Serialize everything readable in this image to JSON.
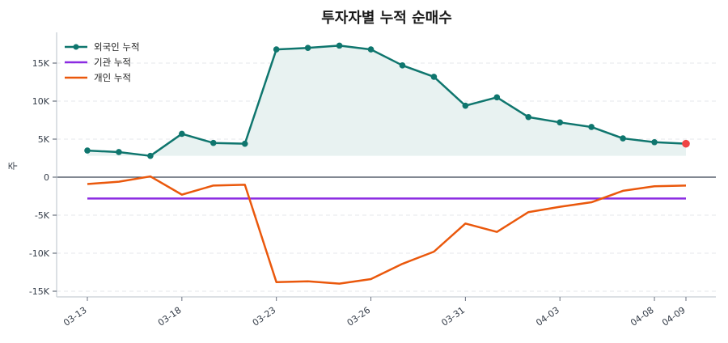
{
  "chart_data": {
    "type": "line",
    "title": "투자자별 누적 순매수",
    "xlabel": "",
    "ylabel": "주",
    "ylim": [
      -15500,
      19000
    ],
    "yticks": [
      -15000,
      -10000,
      -5000,
      0,
      5000,
      10000,
      15000
    ],
    "ytick_labels": [
      "-15K",
      "-10K",
      "-5K",
      "0",
      "5K",
      "10K",
      "15K"
    ],
    "xtick_labels": [
      "03-13",
      "03-18",
      "03-23",
      "03-26",
      "03-31",
      "04-03",
      "04-08",
      "04-09"
    ],
    "xtick_indices": [
      0,
      3,
      6,
      9,
      12,
      15,
      18,
      19
    ],
    "grid": true,
    "legend_position": "upper left",
    "x": [
      "03-13",
      "03-14",
      "03-17",
      "03-18",
      "03-19",
      "03-20",
      "03-23",
      "03-24",
      "03-25",
      "03-26",
      "03-27",
      "03-30",
      "03-31",
      "04-01",
      "04-02",
      "04-03",
      "04-06",
      "04-07",
      "04-08",
      "04-09"
    ],
    "series": [
      {
        "name": "외국인 누적",
        "color": "#0f766e",
        "marker": true,
        "fill": true,
        "values": [
          3500,
          3300,
          2800,
          5700,
          4500,
          4400,
          16800,
          17000,
          17300,
          16800,
          14700,
          13200,
          9400,
          10500,
          7900,
          7200,
          6600,
          5100,
          4600,
          4400
        ]
      },
      {
        "name": "기관 누적",
        "color": "#8b2be2",
        "marker": false,
        "fill": false,
        "values": [
          -2800,
          -2800,
          -2800,
          -2800,
          -2800,
          -2800,
          -2800,
          -2800,
          -2800,
          -2800,
          -2800,
          -2800,
          -2800,
          -2800,
          -2800,
          -2800,
          -2800,
          -2800,
          -2800,
          -2800
        ]
      },
      {
        "name": "개인 누적",
        "color": "#ea580c",
        "marker": false,
        "fill": false,
        "values": [
          -900,
          -600,
          100,
          -2300,
          -1100,
          -1000,
          -13800,
          -13700,
          -14000,
          -13400,
          -11400,
          -9800,
          -6100,
          -7200,
          -4600,
          -3900,
          -3300,
          -1800,
          -1200,
          -1100
        ]
      }
    ],
    "annotations": [
      {
        "type": "highlight-point",
        "series": "외국인 누적",
        "index": 19,
        "color": "#ef4444"
      }
    ]
  },
  "colors": {
    "grid": "#e5e7eb",
    "zero_line": "#374151",
    "axis": "#d1d5db",
    "area_fill": "#e8f2f1"
  }
}
